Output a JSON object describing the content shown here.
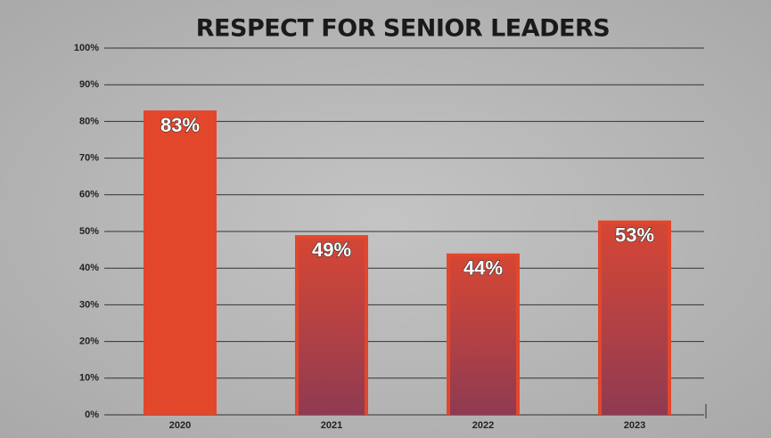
{
  "chart_data": {
    "type": "bar",
    "title": "RESPECT FOR SENIOR LEADERS",
    "categories": [
      "2020",
      "2021",
      "2022",
      "2023"
    ],
    "values": [
      83,
      49,
      44,
      53
    ],
    "value_labels": [
      "83%",
      "49%",
      "44%",
      "53%"
    ],
    "color": "#e2472c",
    "ylim": [
      0,
      100
    ],
    "yticks": [
      {
        "value": 0,
        "label": "0%"
      },
      {
        "value": 10,
        "label": "10%"
      },
      {
        "value": 20,
        "label": "20%"
      },
      {
        "value": 30,
        "label": "30%"
      },
      {
        "value": 40,
        "label": "40%"
      },
      {
        "value": 50,
        "label": "50%"
      },
      {
        "value": 60,
        "label": "60%"
      },
      {
        "value": 70,
        "label": "70%"
      },
      {
        "value": 80,
        "label": "80%"
      },
      {
        "value": 90,
        "label": "90%"
      },
      {
        "value": 100,
        "label": "100%"
      }
    ],
    "grid": true
  }
}
